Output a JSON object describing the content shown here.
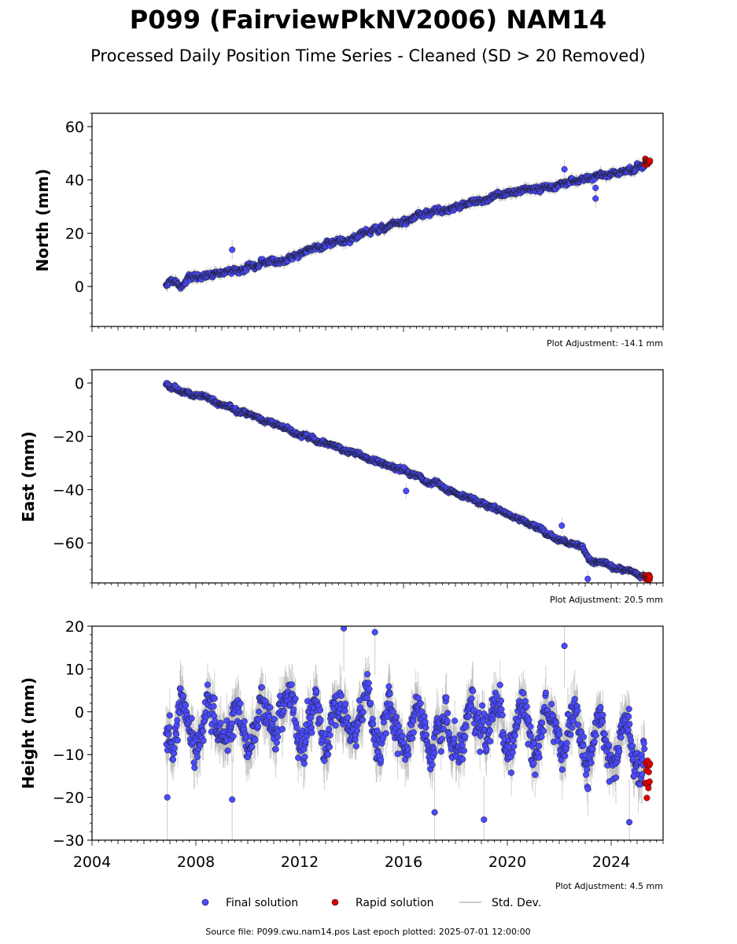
{
  "figure": {
    "title": "P099 (FairviewPkNV2006) NAM14",
    "subtitle": "Processed Daily Position Time Series - Cleaned (SD > 20 Removed)",
    "footer": "Source file: P099.cwu.nam14.pos  Last epoch plotted: 2025-07-01 12:00:00"
  },
  "legend": {
    "final": "Final solution",
    "rapid": "Rapid solution",
    "std": "Std. Dev."
  },
  "colors": {
    "final": "#4a4aff",
    "rapid": "#e00000",
    "marker_edge": "#1a1a1a",
    "std": "#9a9a9a"
  },
  "chart_data": [
    {
      "type": "scatter",
      "name": "north",
      "ylabel": "North (mm)",
      "adjustment": "Plot Adjustment: -14.1 mm",
      "xlim": [
        2004,
        2026
      ],
      "ylim": [
        -15,
        65
      ],
      "yticks": [
        0,
        20,
        40,
        60
      ],
      "yminor_step": 5,
      "trend": [
        [
          2006.85,
          0.5
        ],
        [
          2012,
          12
        ],
        [
          2016,
          25
        ],
        [
          2020,
          35
        ],
        [
          2023,
          40.5
        ],
        [
          2025.5,
          46
        ]
      ],
      "noise": 1.2,
      "err": 1.8,
      "rapid": [
        2025.3,
        2025.5,
        46.5,
        1.0
      ],
      "outliers": [
        [
          2009.4,
          13.8
        ],
        [
          2022.2,
          44
        ],
        [
          2023.4,
          37
        ],
        [
          2023.4,
          33
        ]
      ]
    },
    {
      "type": "scatter",
      "name": "east",
      "ylabel": "East (mm)",
      "adjustment": "Plot Adjustment: 20.5 mm",
      "xlim": [
        2004,
        2026
      ],
      "ylim": [
        -75,
        5
      ],
      "yticks": [
        -60,
        -40,
        -20,
        0
      ],
      "yminor_step": 5,
      "trend": [
        [
          2006.85,
          0
        ],
        [
          2012,
          -19
        ],
        [
          2016,
          -33
        ],
        [
          2020,
          -49
        ],
        [
          2022.9,
          -62
        ],
        [
          2023.1,
          -66
        ],
        [
          2025.5,
          -73
        ]
      ],
      "noise": 0.9,
      "err": 1.5,
      "rapid": [
        2025.3,
        2025.5,
        -73,
        0.9
      ],
      "outliers": [
        [
          2016.1,
          -40.5
        ],
        [
          2022.1,
          -53.5
        ],
        [
          2023.1,
          -73.5
        ]
      ]
    },
    {
      "type": "scatter",
      "name": "height",
      "ylabel": "Height (mm)",
      "adjustment": "Plot Adjustment: 4.5 mm",
      "xlim": [
        2004,
        2026
      ],
      "ylim": [
        -30,
        20
      ],
      "yticks": [
        -30,
        -20,
        -10,
        0,
        10,
        20
      ],
      "yminor_step": 2,
      "xticks": [
        2004,
        2008,
        2012,
        2016,
        2020,
        2024
      ],
      "xminor_step": 0.25,
      "trend": [
        [
          2006.85,
          -3
        ],
        [
          2015,
          -1
        ],
        [
          2018,
          -5
        ],
        [
          2022,
          -4
        ],
        [
          2025.5,
          -8
        ]
      ],
      "seasonal_amp": 5,
      "noise": 5,
      "err": 5,
      "rapid": [
        2025.3,
        2025.5,
        -15,
        3
      ],
      "outliers": [
        [
          2009.4,
          -20.5
        ],
        [
          2013.7,
          19.5
        ],
        [
          2014.9,
          18.6
        ],
        [
          2017.2,
          -23.5
        ],
        [
          2019.1,
          -25.2
        ],
        [
          2022.2,
          15.4
        ],
        [
          2024.7,
          -25.8
        ],
        [
          2006.9,
          -20
        ]
      ]
    }
  ]
}
